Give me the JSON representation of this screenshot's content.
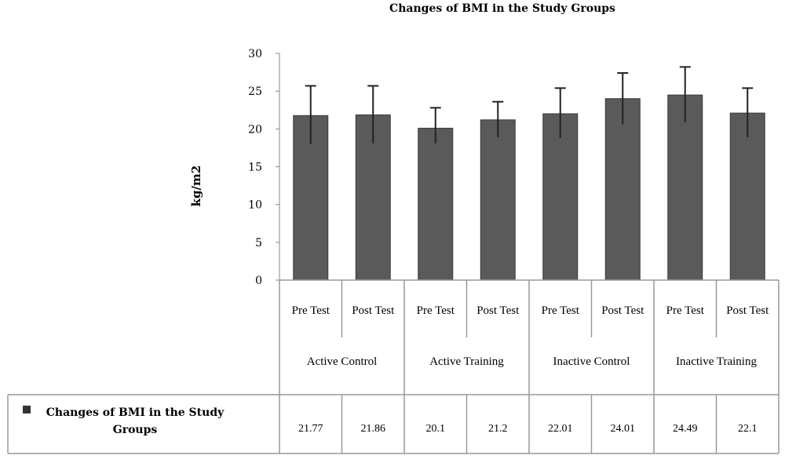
{
  "chart_data": {
    "type": "bar",
    "title": "Changes of BMI in the Study Groups",
    "ylabel": "kg/m2",
    "xlabel": "",
    "ylim": [
      0,
      30
    ],
    "yticks": [
      0,
      5,
      10,
      15,
      20,
      25,
      30
    ],
    "grid": false,
    "categories": [
      "Pre Test",
      "Post Test",
      "Pre Test",
      "Post Test",
      "Pre Test",
      "Post Test",
      "Pre Test",
      "Post Test"
    ],
    "groups": [
      "Active Control",
      "Active Training",
      "Inactive Control",
      "Inactive Training"
    ],
    "series": [
      {
        "name": "Changes of BMI in the Study Groups",
        "values": [
          21.77,
          21.86,
          20.1,
          21.2,
          22.01,
          24.01,
          24.49,
          22.1
        ],
        "error_upper": [
          25.7,
          25.7,
          22.8,
          23.6,
          25.4,
          27.4,
          28.2,
          25.4
        ],
        "error_lower": [
          18.0,
          18.1,
          18.1,
          18.9,
          18.8,
          20.6,
          20.9,
          18.9
        ],
        "color": "#5a5a5a"
      }
    ],
    "table_values": [
      "21.77",
      "21.86",
      "20.1",
      "21.2",
      "22.01",
      "24.01",
      "24.49",
      "22.1"
    ],
    "legend": "data-table-left"
  }
}
